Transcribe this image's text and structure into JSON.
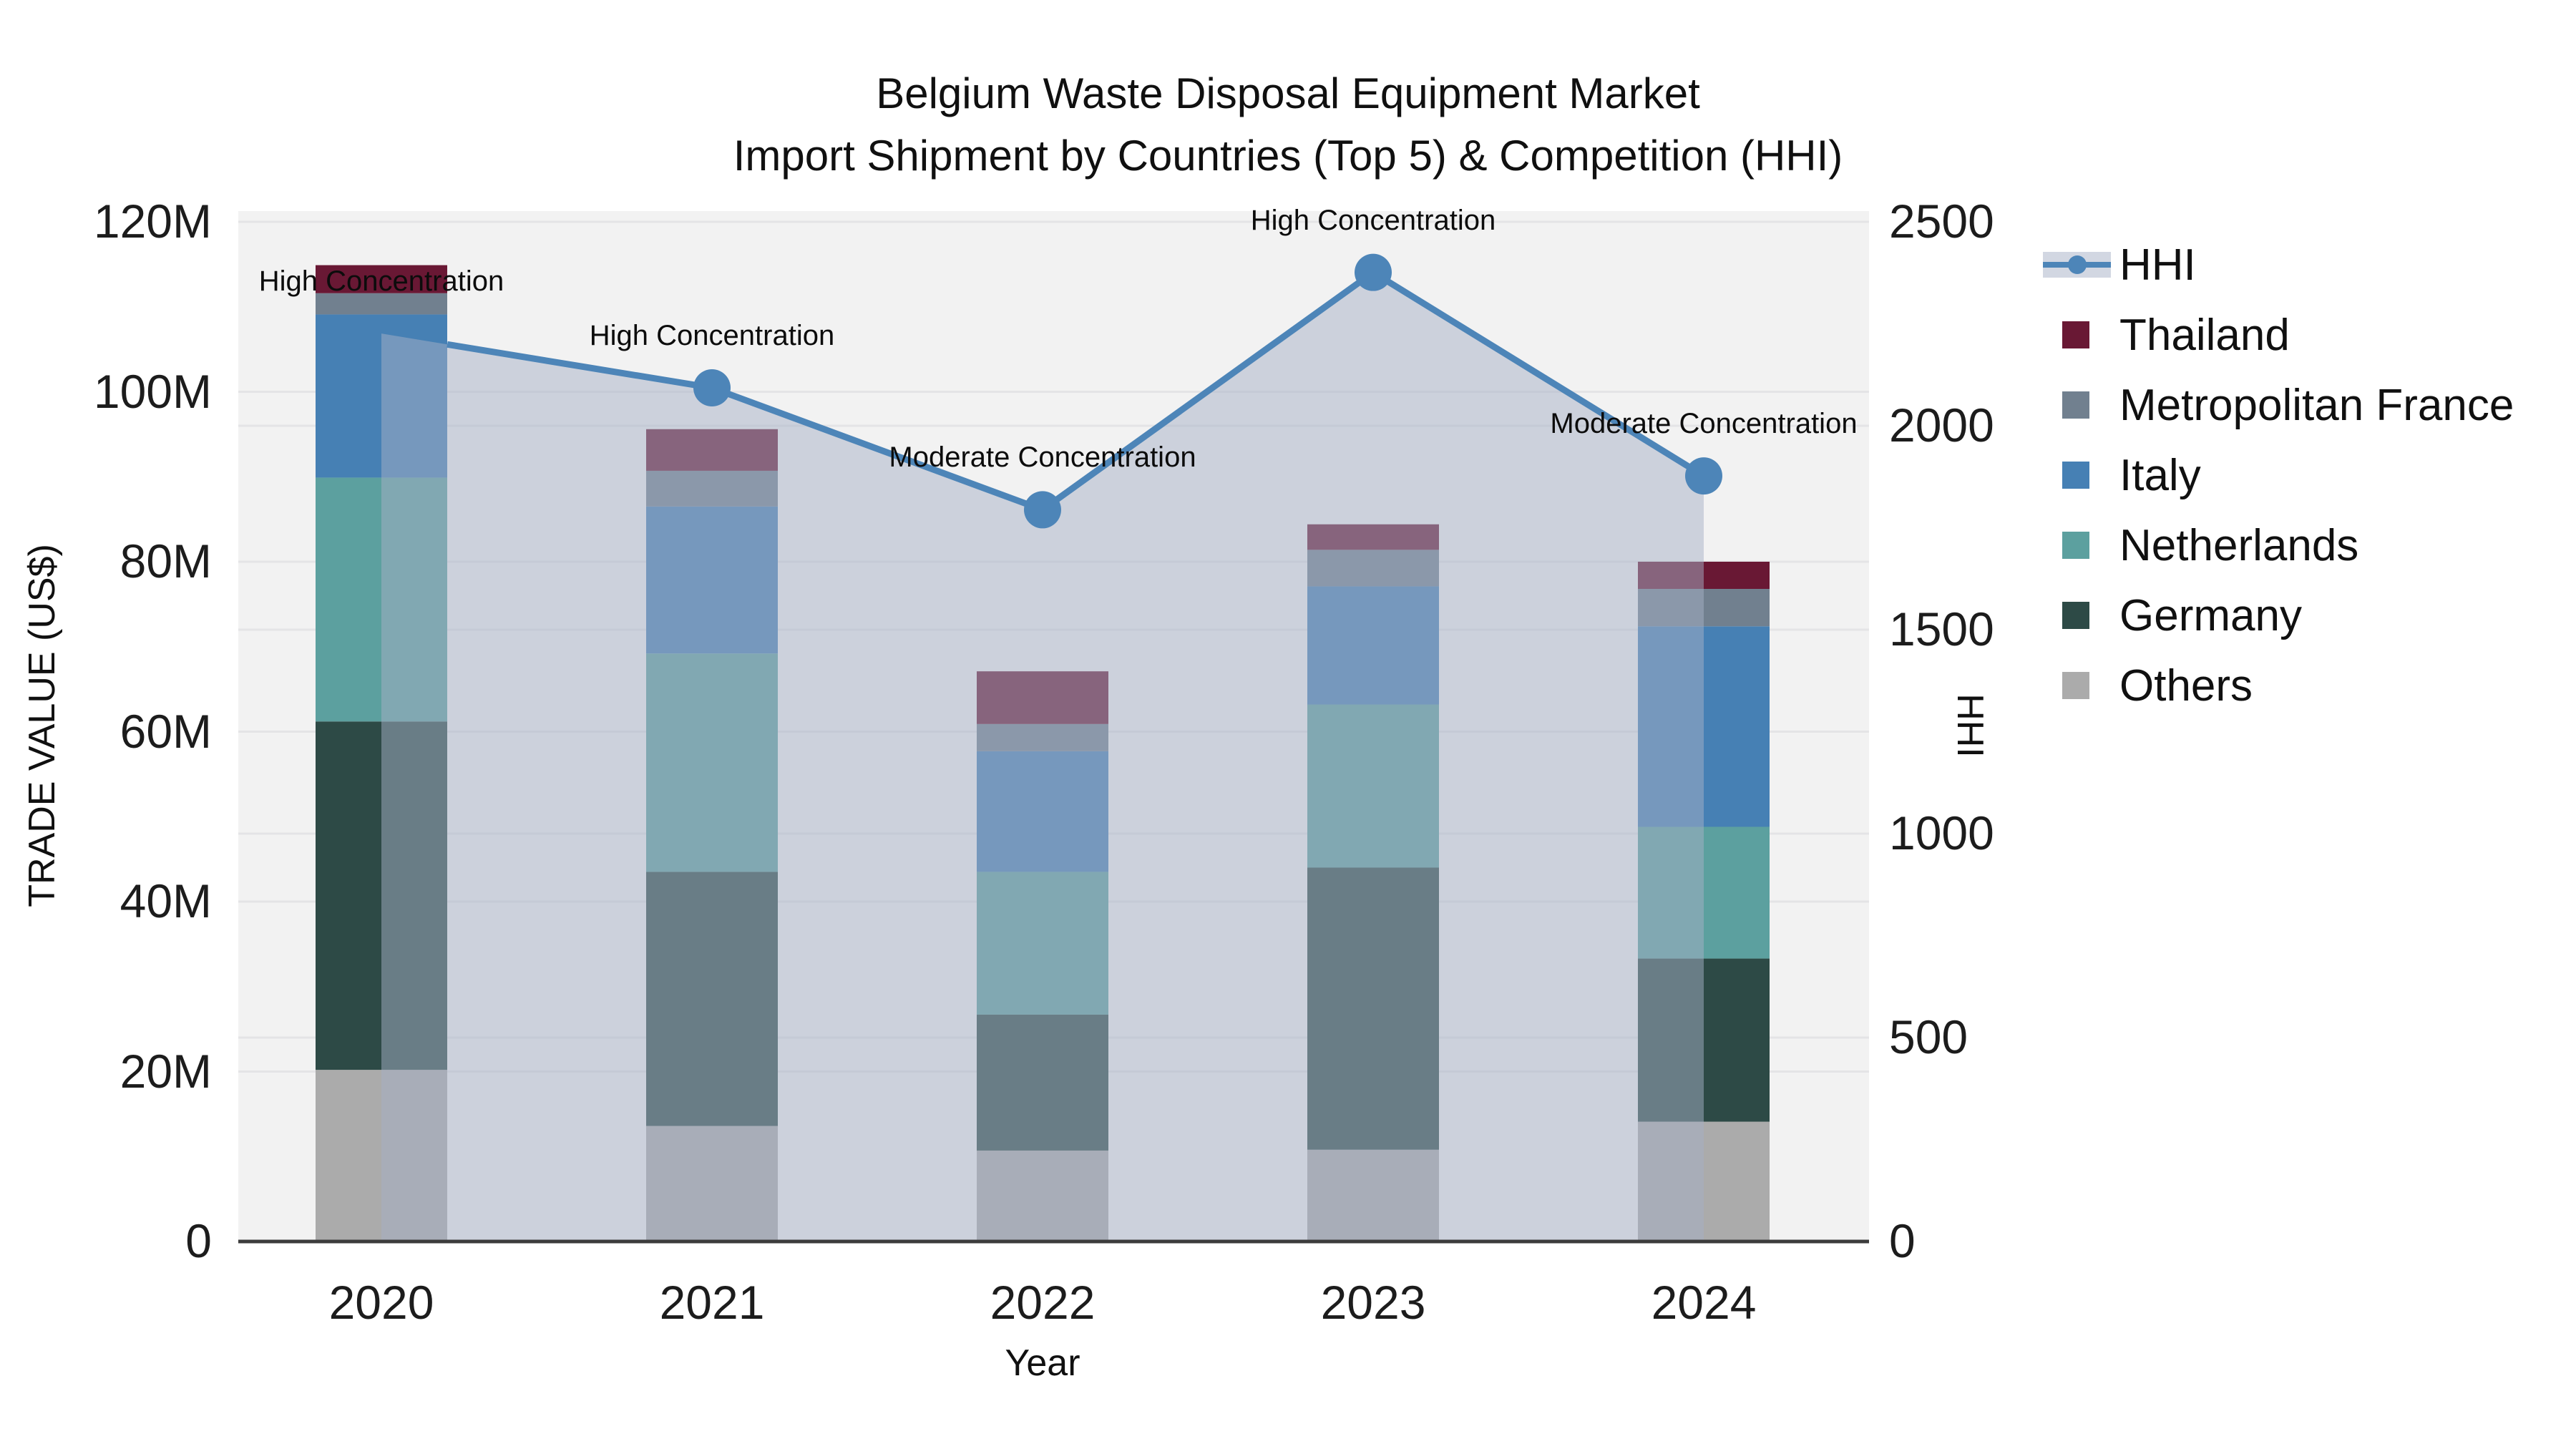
{
  "title": {
    "line1": "Belgium Waste Disposal Equipment Market",
    "line2": "Import Shipment by Countries (Top 5) & Competition (HHI)"
  },
  "axes": {
    "y_left": {
      "title": "TRADE VALUE (US$)",
      "tick_labels": [
        "0",
        "20M",
        "40M",
        "60M",
        "80M",
        "100M",
        "120M"
      ],
      "tick_values_musd": [
        0,
        20,
        40,
        60,
        80,
        100,
        120
      ],
      "range_musd": [
        0,
        120
      ],
      "grid": true
    },
    "y_right": {
      "title": "HHI",
      "tick_labels": [
        "0",
        "500",
        "1000",
        "1500",
        "2000",
        "2500"
      ],
      "tick_values": [
        0,
        500,
        1000,
        1500,
        2000,
        2500
      ],
      "range": [
        0,
        2500
      ],
      "grid": true
    },
    "x": {
      "title": "Year",
      "tick_labels": [
        "2020",
        "2021",
        "2022",
        "2023",
        "2024"
      ]
    }
  },
  "legend": {
    "position": "right",
    "items": [
      {
        "label": "HHI",
        "type": "line",
        "color": "#4d85b8"
      },
      {
        "label": "Thailand",
        "type": "square",
        "color": "#691834"
      },
      {
        "label": "Metropolitan France",
        "type": "square",
        "color": "#71808f"
      },
      {
        "label": "Italy",
        "type": "square",
        "color": "#4680b4"
      },
      {
        "label": "Netherlands",
        "type": "square",
        "color": "#5ca09f"
      },
      {
        "label": "Germany",
        "type": "square",
        "color": "#2d4a46"
      },
      {
        "label": "Others",
        "type": "square",
        "color": "#ababab"
      }
    ]
  },
  "chart_data": {
    "type": [
      "bar",
      "line"
    ],
    "title": "Belgium Waste Disposal Equipment Market — Import Shipment by Countries (Top 5) & Competition (HHI)",
    "categories": [
      "2020",
      "2021",
      "2022",
      "2023",
      "2024"
    ],
    "bar_unit": "USD millions",
    "stack_order_bottom_to_top": [
      "Others",
      "Germany",
      "Netherlands",
      "Italy",
      "Metropolitan France",
      "Thailand"
    ],
    "series": [
      {
        "name": "Others",
        "values": [
          20.2,
          13.6,
          10.7,
          10.8,
          14.1
        ]
      },
      {
        "name": "Germany",
        "values": [
          41.0,
          29.9,
          16.0,
          33.2,
          19.2
        ]
      },
      {
        "name": "Netherlands",
        "values": [
          28.7,
          25.7,
          16.8,
          19.2,
          15.5
        ]
      },
      {
        "name": "Italy",
        "values": [
          19.2,
          17.3,
          14.2,
          13.9,
          23.6
        ]
      },
      {
        "name": "Metropolitan France",
        "values": [
          2.5,
          4.2,
          3.2,
          4.3,
          4.4
        ]
      },
      {
        "name": "Thailand",
        "values": [
          3.3,
          4.9,
          6.2,
          3.0,
          3.2
        ]
      }
    ],
    "totals_musd": [
      114.9,
      95.6,
      67.1,
      84.4,
      80.0
    ],
    "hhi_line": {
      "name": "HHI",
      "axis": "right",
      "style": "line+markers+area",
      "values": [
        2226,
        2093,
        1794,
        2376,
        1877
      ]
    },
    "annotations": [
      {
        "x": "2020",
        "text": "High Concentration"
      },
      {
        "x": "2021",
        "text": "High Concentration"
      },
      {
        "x": "2022",
        "text": "Moderate Concentration"
      },
      {
        "x": "2023",
        "text": "High Concentration"
      },
      {
        "x": "2024",
        "text": "Moderate Concentration"
      }
    ],
    "xlabel": "Year",
    "ylabel_left": "TRADE VALUE (US$)",
    "ylabel_right": "HHI",
    "ylim_left_musd": [
      0,
      120
    ],
    "ylim_right": [
      0,
      2500
    ],
    "grid": true,
    "legend_position": "right"
  },
  "colors": {
    "thailand": "#691834",
    "metropolitan_france": "#71808f",
    "italy": "#4680b4",
    "netherlands": "#5ca09f",
    "germany": "#2d4a46",
    "others": "#ababab",
    "hhi_line": "#4d85b8",
    "hhi_area": "rgba(165,175,197,0.5)",
    "plot_bg": "#f2f2f2",
    "grid_line": "#e4e4e6",
    "axis_line": "#3c3c3c",
    "text": "#111111"
  }
}
